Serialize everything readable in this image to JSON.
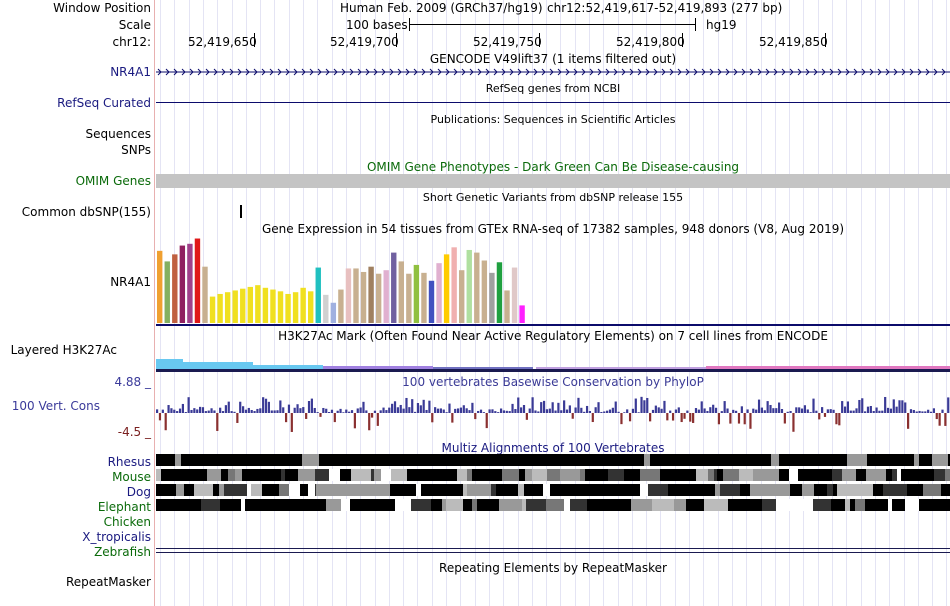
{
  "header": {
    "window_position_label": "Window Position",
    "scale_label": "Scale",
    "chrom_label": "chr12:",
    "assembly_text": "Human Feb. 2009 (GRCh37/hg19)",
    "position_text": "chr12:52,419,617-52,419,893 (277 bp)",
    "scale_bases": "100 bases",
    "scale_db": "hg19",
    "ruler_ticks": [
      "52,419,650",
      "52,419,700",
      "52,419,750",
      "52,419,800",
      "52,419,850"
    ]
  },
  "tracks": {
    "gencode": {
      "title": "GENCODE V49lift37 (1 items filtered out)",
      "label": "NR4A1"
    },
    "refseq": {
      "title": "RefSeq genes from NCBI",
      "label": "RefSeq Curated"
    },
    "publications": {
      "title": "Publications: Sequences in Scientific Articles",
      "label": "Sequences"
    },
    "snps": {
      "label": "SNPs"
    },
    "omim": {
      "title": "OMIM Gene Phenotypes - Dark Green Can Be Disease-causing",
      "label": "OMIM Genes"
    },
    "dbsnp": {
      "title": "Short Genetic Variants from dbSNP release 155",
      "label": "Common dbSNP(155)"
    },
    "gtex": {
      "title": "Gene Expression in 54 tissues from GTEx RNA-seq of 17382 samples, 948 donors (V8, Aug 2019)",
      "label": "NR4A1",
      "colors": [
        "#f0a030",
        "#84b060",
        "#c06040",
        "#902060",
        "#a0408a",
        "#e01818",
        "#c8b090",
        "#f0e020",
        "#f0e020",
        "#f0e020",
        "#f0e020",
        "#f0e020",
        "#f0e020",
        "#f0e020",
        "#f0e020",
        "#f0e020",
        "#f0e020",
        "#f0e020",
        "#f0e020",
        "#f0e020",
        "#f0e020",
        "#20c0c0",
        "#d0d0d0",
        "#a0b0e0",
        "#c8b090",
        "#e8c0c0",
        "#c8b090",
        "#c8b090",
        "#a08060",
        "#c8b090",
        "#e0b0d0",
        "#7060a0",
        "#c8b090",
        "#c8b090",
        "#90c040",
        "#c8b090",
        "#4050c0",
        "#e0b0d0",
        "#ffcc00",
        "#f0b0b0",
        "#c8b090",
        "#b0e0a0",
        "#c8b090",
        "#c8b090",
        "#a0a0a0",
        "#20a040",
        "#c8b090",
        "#e0c8c8",
        "#ff20ff"
      ],
      "values": [
        82,
        70,
        78,
        88,
        90,
        96,
        64,
        30,
        33,
        35,
        37,
        39,
        41,
        43,
        40,
        38,
        36,
        33,
        35,
        40,
        36,
        63,
        32,
        23,
        38,
        62,
        62,
        58,
        64,
        56,
        60,
        80,
        70,
        56,
        66,
        57,
        48,
        68,
        78,
        86,
        60,
        83,
        80,
        71,
        57,
        69,
        37,
        63,
        20
      ]
    },
    "h3k27ac": {
      "title": "H3K27Ac Mark (Often Found Near Active Regulatory Elements) on 7 cell lines from ENCODE",
      "label": "Layered H3K27Ac"
    },
    "phylop": {
      "title": "100 vertebrates Basewise Conservation by PhyloP",
      "label": "100 Vert. Cons",
      "max_label": "4.88 _",
      "min_label": "-4.5 _",
      "ylim": [
        -4.5,
        4.88
      ]
    },
    "multiz": {
      "title": "Multiz Alignments of 100 Vertebrates",
      "species": [
        "Rhesus",
        "Mouse",
        "Dog",
        "Elephant",
        "Chicken",
        "X_tropicalis",
        "Zebrafish"
      ]
    },
    "repeatmasker": {
      "title": "Repeating Elements by RepeatMasker",
      "label": "RepeatMasker"
    }
  },
  "colors": {
    "navy": "#0b0b6b",
    "label_blue": "#1a1a80",
    "omim_green": "#0a6a0a",
    "phylop_pos": "#3a3a96",
    "phylop_neg": "#8a3030",
    "omim_bar": "#c4c4c4"
  }
}
